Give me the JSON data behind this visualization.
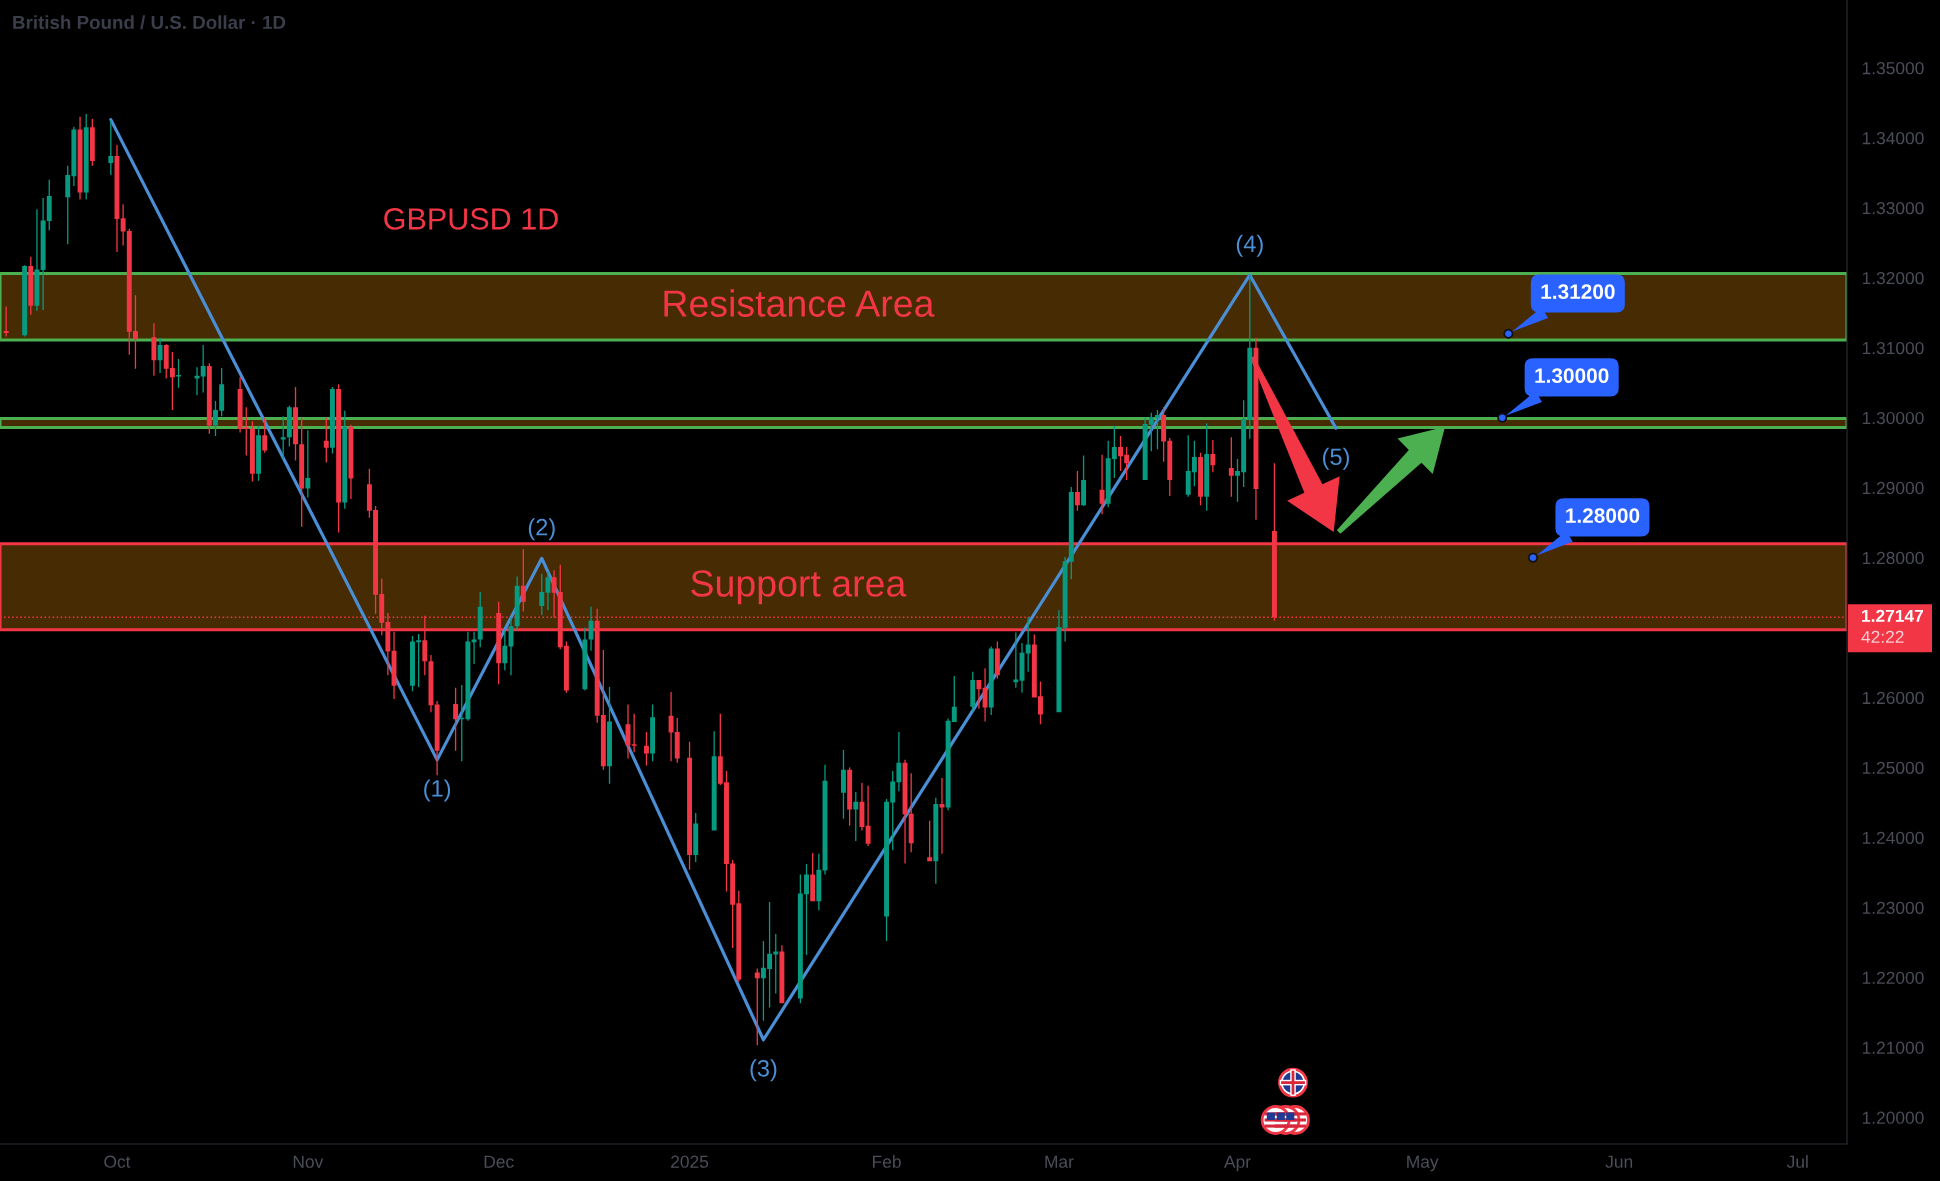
{
  "chart_data": {
    "type": "candlestick",
    "title": "British Pound / U.S. Dollar · 1D",
    "subtitle": "GBPUSD 1D",
    "x": [
      "2024-09-13",
      "2024-09-16",
      "2024-09-17",
      "2024-09-18",
      "2024-09-19",
      "2024-09-20",
      "2024-09-23",
      "2024-09-24",
      "2024-09-25",
      "2024-09-26",
      "2024-09-27",
      "2024-09-30",
      "2024-10-01",
      "2024-10-02",
      "2024-10-03",
      "2024-10-04",
      "2024-10-07",
      "2024-10-08",
      "2024-10-09",
      "2024-10-10",
      "2024-10-11",
      "2024-10-14",
      "2024-10-15",
      "2024-10-16",
      "2024-10-17",
      "2024-10-18",
      "2024-10-21",
      "2024-10-22",
      "2024-10-23",
      "2024-10-24",
      "2024-10-25",
      "2024-10-28",
      "2024-10-29",
      "2024-10-30",
      "2024-10-31",
      "2024-11-01",
      "2024-11-04",
      "2024-11-05",
      "2024-11-06",
      "2024-11-07",
      "2024-11-08",
      "2024-11-11",
      "2024-11-12",
      "2024-11-13",
      "2024-11-14",
      "2024-11-15",
      "2024-11-18",
      "2024-11-19",
      "2024-11-20",
      "2024-11-21",
      "2024-11-22",
      "2024-11-25",
      "2024-11-26",
      "2024-11-27",
      "2024-11-28",
      "2024-11-29",
      "2024-12-02",
      "2024-12-03",
      "2024-12-04",
      "2024-12-05",
      "2024-12-06",
      "2024-12-09",
      "2024-12-10",
      "2024-12-11",
      "2024-12-12",
      "2024-12-13",
      "2024-12-16",
      "2024-12-17",
      "2024-12-18",
      "2024-12-19",
      "2024-12-20",
      "2024-12-23",
      "2024-12-24",
      "2024-12-26",
      "2024-12-27",
      "2024-12-30",
      "2024-12-31",
      "2025-01-02",
      "2025-01-03",
      "2025-01-06",
      "2025-01-07",
      "2025-01-08",
      "2025-01-09",
      "2025-01-10",
      "2025-01-13",
      "2025-01-14",
      "2025-01-15",
      "2025-01-16",
      "2025-01-17",
      "2025-01-20",
      "2025-01-21",
      "2025-01-22",
      "2025-01-23",
      "2025-01-24",
      "2025-01-27",
      "2025-01-28",
      "2025-01-29",
      "2025-01-30",
      "2025-01-31",
      "2025-02-03",
      "2025-02-04",
      "2025-02-05",
      "2025-02-06",
      "2025-02-07",
      "2025-02-10",
      "2025-02-11",
      "2025-02-12",
      "2025-02-13",
      "2025-02-14",
      "2025-02-17",
      "2025-02-18",
      "2025-02-19",
      "2025-02-20",
      "2025-02-21",
      "2025-02-24",
      "2025-02-25",
      "2025-02-26",
      "2025-02-27",
      "2025-02-28",
      "2025-03-03",
      "2025-03-04",
      "2025-03-05",
      "2025-03-06",
      "2025-03-07",
      "2025-03-10",
      "2025-03-11",
      "2025-03-12",
      "2025-03-13",
      "2025-03-14",
      "2025-03-17",
      "2025-03-18",
      "2025-03-19",
      "2025-03-20",
      "2025-03-21",
      "2025-03-24",
      "2025-03-25",
      "2025-03-26",
      "2025-03-27",
      "2025-03-28",
      "2025-03-31",
      "2025-04-01",
      "2025-04-02",
      "2025-04-03",
      "2025-04-04",
      "2025-04-07"
    ],
    "ohlc": [
      [
        1.3124,
        1.3159,
        1.3116,
        1.3121
      ],
      [
        1.3118,
        1.3218,
        1.3116,
        1.3217
      ],
      [
        1.3217,
        1.323,
        1.3147,
        1.316
      ],
      [
        1.316,
        1.3298,
        1.3153,
        1.3212
      ],
      [
        1.3211,
        1.3314,
        1.3154,
        1.3282
      ],
      [
        1.3281,
        1.334,
        1.3268,
        1.3317
      ],
      [
        1.3315,
        1.336,
        1.3248,
        1.3347
      ],
      [
        1.3345,
        1.3416,
        1.3331,
        1.3412
      ],
      [
        1.3412,
        1.343,
        1.3312,
        1.3322
      ],
      [
        1.3322,
        1.3434,
        1.3312,
        1.3415
      ],
      [
        1.3415,
        1.3427,
        1.336,
        1.3367
      ],
      [
        1.3364,
        1.3425,
        1.3347,
        1.3374
      ],
      [
        1.3374,
        1.339,
        1.3237,
        1.3284
      ],
      [
        1.3285,
        1.3305,
        1.3246,
        1.3266
      ],
      [
        1.3267,
        1.327,
        1.309,
        1.3123
      ],
      [
        1.3124,
        1.3175,
        1.307,
        1.3112
      ],
      [
        1.3115,
        1.3135,
        1.306,
        1.3082
      ],
      [
        1.3082,
        1.3114,
        1.3064,
        1.3104
      ],
      [
        1.3104,
        1.3105,
        1.3056,
        1.307
      ],
      [
        1.3071,
        1.3094,
        1.3011,
        1.3058
      ],
      [
        1.3059,
        1.3084,
        1.3043,
        1.306
      ],
      [
        1.3056,
        1.3072,
        1.3032,
        1.306
      ],
      [
        1.3059,
        1.3104,
        1.3036,
        1.3074
      ],
      [
        1.3074,
        1.3078,
        1.2977,
        1.2989
      ],
      [
        1.2989,
        1.3024,
        1.2974,
        1.3011
      ],
      [
        1.301,
        1.3071,
        1.3002,
        1.3048
      ],
      [
        1.3041,
        1.3058,
        1.2979,
        1.2984
      ],
      [
        1.2985,
        1.3015,
        1.2946,
        1.2984
      ],
      [
        1.2984,
        1.2995,
        1.2909,
        1.292
      ],
      [
        1.292,
        1.2988,
        1.291,
        1.2975
      ],
      [
        1.2975,
        1.3,
        1.295,
        1.2953
      ],
      [
        1.2969,
        1.3002,
        1.2941,
        1.2972
      ],
      [
        1.2972,
        1.3017,
        1.2959,
        1.3015
      ],
      [
        1.3015,
        1.3044,
        1.2939,
        1.2962
      ],
      [
        1.2962,
        1.3,
        1.2844,
        1.2899
      ],
      [
        1.2899,
        1.2982,
        1.2886,
        1.2914
      ],
      [
        1.2967,
        1.3,
        1.2936,
        1.2957
      ],
      [
        1.2957,
        1.3044,
        1.2949,
        1.3041
      ],
      [
        1.3041,
        1.3048,
        1.2836,
        1.2879
      ],
      [
        1.2879,
        1.301,
        1.287,
        1.2987
      ],
      [
        1.2987,
        1.299,
        1.2884,
        1.2913
      ],
      [
        1.2905,
        1.2927,
        1.2857,
        1.2867
      ],
      [
        1.2868,
        1.2874,
        1.272,
        1.2747
      ],
      [
        1.2748,
        1.277,
        1.2689,
        1.2707
      ],
      [
        1.2708,
        1.2721,
        1.2632,
        1.2666
      ],
      [
        1.2667,
        1.2694,
        1.2598,
        1.2617
      ],
      [
        1.2617,
        1.2688,
        1.2609,
        1.268
      ],
      [
        1.2679,
        1.2691,
        1.2615,
        1.2682
      ],
      [
        1.2682,
        1.2717,
        1.2632,
        1.2652
      ],
      [
        1.2652,
        1.2661,
        1.2579,
        1.2589
      ],
      [
        1.259,
        1.2595,
        1.2489,
        1.2524
      ],
      [
        1.2591,
        1.2614,
        1.2524,
        1.2569
      ],
      [
        1.2569,
        1.2618,
        1.2509,
        1.257
      ],
      [
        1.2569,
        1.2694,
        1.2567,
        1.268
      ],
      [
        1.2679,
        1.2694,
        1.2648,
        1.2683
      ],
      [
        1.2683,
        1.2751,
        1.2672,
        1.273
      ],
      [
        1.2721,
        1.2737,
        1.2619,
        1.2649
      ],
      [
        1.2649,
        1.2696,
        1.2639,
        1.2674
      ],
      [
        1.2673,
        1.2714,
        1.2632,
        1.2702
      ],
      [
        1.2702,
        1.2773,
        1.2696,
        1.276
      ],
      [
        1.276,
        1.2812,
        1.2723,
        1.2737
      ],
      [
        1.2731,
        1.2777,
        1.2718,
        1.2751
      ],
      [
        1.275,
        1.278,
        1.2725,
        1.2772
      ],
      [
        1.2772,
        1.2782,
        1.2714,
        1.275
      ],
      [
        1.2751,
        1.279,
        1.2669,
        1.2672
      ],
      [
        1.2674,
        1.268,
        1.2607,
        1.261
      ],
      [
        1.2612,
        1.27,
        1.261,
        1.2683
      ],
      [
        1.2683,
        1.273,
        1.2667,
        1.271
      ],
      [
        1.271,
        1.2727,
        1.2564,
        1.2574
      ],
      [
        1.2575,
        1.2668,
        1.2497,
        1.2502
      ],
      [
        1.2502,
        1.2615,
        1.2477,
        1.2566
      ],
      [
        1.2562,
        1.259,
        1.2513,
        1.2532
      ],
      [
        1.2532,
        1.2577,
        1.2522,
        1.2531
      ],
      [
        1.2531,
        1.2551,
        1.2503,
        1.252
      ],
      [
        1.252,
        1.259,
        1.2509,
        1.2572
      ],
      [
        1.2574,
        1.2608,
        1.2509,
        1.255
      ],
      [
        1.2551,
        1.2571,
        1.2507,
        1.2513
      ],
      [
        1.2514,
        1.2537,
        1.2354,
        1.2375
      ],
      [
        1.2375,
        1.2435,
        1.2365,
        1.242
      ],
      [
        1.241,
        1.2552,
        1.241,
        1.2516
      ],
      [
        1.2516,
        1.2577,
        1.2475,
        1.2477
      ],
      [
        1.2479,
        1.2495,
        1.2323,
        1.2362
      ],
      [
        1.2363,
        1.2368,
        1.2242,
        1.2304
      ],
      [
        1.2306,
        1.2324,
        1.2194,
        1.2197
      ],
      [
        1.2207,
        1.2213,
        1.2103,
        1.2199
      ],
      [
        1.2199,
        1.2252,
        1.2138,
        1.2214
      ],
      [
        1.2212,
        1.2308,
        1.2157,
        1.2234
      ],
      [
        1.2233,
        1.2262,
        1.2177,
        1.2237
      ],
      [
        1.2237,
        1.2246,
        1.2163,
        1.2163
      ],
      [
        1.217,
        1.2347,
        1.2163,
        1.232
      ],
      [
        1.2319,
        1.2362,
        1.2232,
        1.2347
      ],
      [
        1.2347,
        1.2378,
        1.2309,
        1.2309
      ],
      [
        1.2309,
        1.2377,
        1.2296,
        1.2354
      ],
      [
        1.2353,
        1.2504,
        1.2347,
        1.2481
      ],
      [
        1.2464,
        1.2525,
        1.2427,
        1.2497
      ],
      [
        1.2497,
        1.25,
        1.2417,
        1.244
      ],
      [
        1.244,
        1.2465,
        1.2395,
        1.2451
      ],
      [
        1.2451,
        1.2478,
        1.241,
        1.2415
      ],
      [
        1.2417,
        1.2474,
        1.2388,
        1.2391
      ],
      [
        1.2287,
        1.2455,
        1.2252,
        1.2451
      ],
      [
        1.245,
        1.2495,
        1.2382,
        1.248
      ],
      [
        1.2479,
        1.2551,
        1.2466,
        1.2507
      ],
      [
        1.2507,
        1.2511,
        1.2363,
        1.2433
      ],
      [
        1.2434,
        1.2492,
        1.2379,
        1.2392
      ],
      [
        1.2372,
        1.2424,
        1.2366,
        1.2366
      ],
      [
        1.2366,
        1.2457,
        1.2334,
        1.2448
      ],
      [
        1.2448,
        1.2485,
        1.2377,
        1.2443
      ],
      [
        1.2443,
        1.257,
        1.2439,
        1.2567
      ],
      [
        1.2565,
        1.2631,
        1.2565,
        1.2587
      ],
      [
        1.2587,
        1.2637,
        1.258,
        1.2625
      ],
      [
        1.2625,
        1.2625,
        1.2584,
        1.2612
      ],
      [
        1.2614,
        1.2642,
        1.2566,
        1.2586
      ],
      [
        1.2586,
        1.2673,
        1.2575,
        1.267
      ],
      [
        1.267,
        1.268,
        1.2627,
        1.2632
      ],
      [
        1.2622,
        1.2693,
        1.2614,
        1.2626
      ],
      [
        1.2624,
        1.2678,
        1.2607,
        1.2664
      ],
      [
        1.2663,
        1.2715,
        1.2637,
        1.2676
      ],
      [
        1.2676,
        1.269,
        1.26,
        1.26
      ],
      [
        1.2602,
        1.2623,
        1.2562,
        1.2576
      ],
      [
        1.2579,
        1.2725,
        1.2579,
        1.2701
      ],
      [
        1.27,
        1.2801,
        1.268,
        1.2795
      ],
      [
        1.2794,
        1.2901,
        1.2769,
        1.2894
      ],
      [
        1.2894,
        1.2924,
        1.2867,
        1.2875
      ],
      [
        1.2875,
        1.2946,
        1.2874,
        1.2911
      ],
      [
        1.2897,
        1.2947,
        1.2862,
        1.2877
      ],
      [
        1.2877,
        1.2967,
        1.2872,
        1.2942
      ],
      [
        1.2941,
        1.2988,
        1.2914,
        1.2958
      ],
      [
        1.2958,
        1.2974,
        1.2924,
        1.2945
      ],
      [
        1.2947,
        1.2958,
        1.2911,
        1.2935
      ],
      [
        1.2911,
        1.3,
        1.2911,
        1.2991
      ],
      [
        1.299,
        1.3007,
        1.2952,
        1.3001
      ],
      [
        1.3,
        1.3011,
        1.2955,
        1.3004
      ],
      [
        1.3004,
        1.3015,
        1.2937,
        1.2966
      ],
      [
        1.2967,
        1.2971,
        1.2888,
        1.2911
      ],
      [
        1.289,
        1.2975,
        1.2887,
        1.2924
      ],
      [
        1.2922,
        1.2967,
        1.2902,
        1.2944
      ],
      [
        1.2944,
        1.295,
        1.2875,
        1.2887
      ],
      [
        1.2887,
        1.2992,
        1.2867,
        1.2948
      ],
      [
        1.2948,
        1.2968,
        1.2922,
        1.2932
      ],
      [
        1.2928,
        1.2972,
        1.2887,
        1.2917
      ],
      [
        1.2917,
        1.2941,
        1.288,
        1.2924
      ],
      [
        1.2922,
        1.3025,
        1.2901,
        1.2998
      ],
      [
        1.2997,
        1.3204,
        1.297,
        1.31
      ],
      [
        1.31,
        1.3114,
        1.2854,
        1.2898
      ],
      [
        1.2838,
        1.2935,
        1.271,
        1.27147
      ]
    ],
    "colors": [
      "#f23645",
      "#089981",
      "#f23645",
      "#089981",
      "#089981",
      "#089981",
      "#089981",
      "#089981",
      "#f23645",
      "#089981",
      "#f23645",
      "#089981",
      "#f23645",
      "#f23645",
      "#f23645",
      "#f23645",
      "#f23645",
      "#089981",
      "#f23645",
      "#f23645",
      "#089981",
      "#089981",
      "#089981",
      "#f23645",
      "#089981",
      "#089981",
      "#f23645",
      "#f23645",
      "#f23645",
      "#089981",
      "#f23645",
      "#089981",
      "#089981",
      "#f23645",
      "#f23645",
      "#089981",
      "#f23645",
      "#089981",
      "#f23645",
      "#089981",
      "#f23645",
      "#f23645",
      "#f23645",
      "#f23645",
      "#f23645",
      "#f23645",
      "#089981",
      "#089981",
      "#f23645",
      "#f23645",
      "#f23645",
      "#f23645",
      "#089981",
      "#089981",
      "#089981",
      "#089981",
      "#f23645",
      "#089981",
      "#089981",
      "#089981",
      "#f23645",
      "#089981",
      "#089981",
      "#f23645",
      "#f23645",
      "#f23645",
      "#089981",
      "#089981",
      "#f23645",
      "#f23645",
      "#089981",
      "#f23645",
      "#f23645",
      "#f23645",
      "#089981",
      "#f23645",
      "#f23645",
      "#f23645",
      "#089981",
      "#089981",
      "#f23645",
      "#f23645",
      "#f23645",
      "#f23645",
      "#f23645",
      "#089981",
      "#089981",
      "#089981",
      "#f23645",
      "#089981",
      "#089981",
      "#f23645",
      "#089981",
      "#089981",
      "#089981",
      "#f23645",
      "#089981",
      "#f23645",
      "#f23645",
      "#089981",
      "#089981",
      "#089981",
      "#f23645",
      "#f23645",
      "#f23645",
      "#089981",
      "#f23645",
      "#089981",
      "#089981",
      "#089981",
      "#f23645",
      "#f23645",
      "#089981",
      "#f23645",
      "#089981",
      "#089981",
      "#089981",
      "#f23645",
      "#f23645",
      "#089981",
      "#089981",
      "#089981",
      "#f23645",
      "#089981",
      "#f23645",
      "#089981",
      "#089981",
      "#f23645",
      "#f23645",
      "#089981",
      "#089981",
      "#089981",
      "#f23645",
      "#f23645",
      "#089981",
      "#089981",
      "#f23645",
      "#089981",
      "#f23645",
      "#f23645",
      "#089981",
      "#089981",
      "#089981",
      "#f23645",
      "#f23645"
    ],
    "series": [
      {
        "type": "line",
        "color": "#4a8fd6",
        "x": [
          "2024-09-30",
          "2024-11-22",
          "2024-12-09",
          "2025-01-14",
          "2025-04-03",
          "2025-04-17"
        ],
        "values": [
          1.3426,
          1.2511,
          1.2799,
          1.2111,
          1.3204,
          1.2985
        ]
      }
    ],
    "bands": [
      {
        "axis": "y",
        "from": 1.3111,
        "to": 1.3206,
        "label": "Resistance Area",
        "color": "#4caf50"
      },
      {
        "axis": "y",
        "from": 1.2986,
        "to": 1.2999,
        "color": "#4caf50"
      },
      {
        "axis": "y",
        "from": 1.2697,
        "to": 1.282,
        "label": "Support area",
        "color": "#f23645"
      }
    ],
    "ref_lines": [
      {
        "axis": "y",
        "value": 1.27147,
        "label": "1.27147",
        "color": "#f23645",
        "line_style": "dotted"
      }
    ],
    "annotations": [
      {
        "text": "(1)",
        "x": "2024-11-22",
        "y": 1.2511
      },
      {
        "text": "(2)",
        "x": "2024-12-09",
        "y": 1.2799
      },
      {
        "text": "(3)",
        "x": "2025-01-14",
        "y": 1.2111
      },
      {
        "text": "(4)",
        "x": "2025-04-03",
        "y": 1.3204
      },
      {
        "text": "(5)",
        "x": "2025-04-17",
        "y": 1.2985
      },
      {
        "text": "1.31200",
        "x": "2025-05-15",
        "y": 1.312
      },
      {
        "text": "1.30000",
        "x": "2025-05-14",
        "y": 1.3
      },
      {
        "text": "1.28000",
        "x": "2025-05-19",
        "y": 1.28
      },
      "42:22"
    ],
    "xlim": [
      "2024-09-12",
      "2025-07-09"
    ],
    "xticks": [
      {
        "value": "2024-10-01",
        "label": "Oct"
      },
      {
        "value": "2024-11-01",
        "label": "Nov"
      },
      {
        "value": "2024-12-02",
        "label": "Dec"
      },
      {
        "value": "2025-01-02",
        "label": "2025"
      },
      {
        "value": "2025-02-03",
        "label": "Feb"
      },
      {
        "value": "2025-03-03",
        "label": "Mar"
      },
      {
        "value": "2025-04-01",
        "label": "Apr"
      },
      {
        "value": "2025-05-01",
        "label": "May"
      },
      {
        "value": "2025-06-02",
        "label": "Jun"
      },
      {
        "value": "2025-07-01",
        "label": "Jul"
      }
    ],
    "ylim": [
      1.1962,
      1.3597
    ],
    "yticks": [
      {
        "value": 1.2,
        "label": "1.20000"
      },
      {
        "value": 1.21,
        "label": "1.21000"
      },
      {
        "value": 1.22,
        "label": "1.22000"
      },
      {
        "value": 1.23,
        "label": "1.23000"
      },
      {
        "value": 1.24,
        "label": "1.24000"
      },
      {
        "value": 1.25,
        "label": "1.25000"
      },
      {
        "value": 1.26,
        "label": "1.26000"
      },
      {
        "value": 1.28,
        "label": "1.28000"
      },
      {
        "value": 1.29,
        "label": "1.29000"
      },
      {
        "value": 1.3,
        "label": "1.30000"
      },
      {
        "value": 1.31,
        "label": "1.31000"
      },
      {
        "value": 1.32,
        "label": "1.32000"
      },
      {
        "value": 1.33,
        "label": "1.33000"
      },
      {
        "value": 1.34,
        "label": "1.34000"
      },
      {
        "value": 1.35,
        "label": "1.35000"
      }
    ]
  }
}
